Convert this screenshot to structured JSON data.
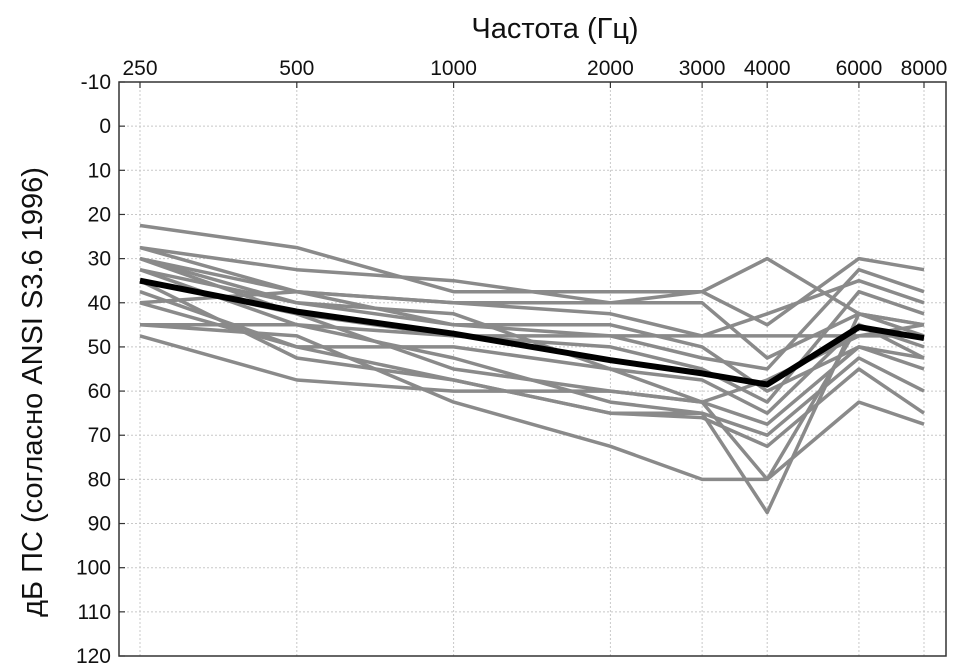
{
  "chart_data": {
    "type": "line",
    "title": "",
    "xlabel": "Частота (Гц)",
    "ylabel": "дБ ПС (согласно ANSI S3.6 1996)",
    "x_scale": "log",
    "x_ticks": [
      250,
      500,
      1000,
      2000,
      3000,
      4000,
      6000,
      8000
    ],
    "x_tick_labels": [
      "250",
      "500",
      "1000",
      "2000",
      "3000",
      "4000",
      "6000",
      "8000"
    ],
    "y_ticks": [
      -10,
      0,
      10,
      20,
      30,
      40,
      50,
      60,
      70,
      80,
      90,
      100,
      110,
      120
    ],
    "y_tick_labels": [
      "-10",
      "0",
      "10",
      "20",
      "30",
      "40",
      "50",
      "60",
      "70",
      "80",
      "90",
      "100",
      "110",
      "120"
    ],
    "xlim": [
      250,
      8000
    ],
    "ylim": [
      -10,
      120
    ],
    "y_inverted": true,
    "grid": true,
    "legend": "none",
    "colors": {
      "individual": "#8a8a8a",
      "mean": "#000000",
      "grid": "#c8c8c8",
      "frame": "#333333"
    },
    "x": [
      250,
      500,
      1000,
      2000,
      3000,
      4000,
      6000,
      8000
    ],
    "series": [
      {
        "values": [
          22.5,
          27.5,
          37.5,
          37.5,
          37.5,
          30,
          42.5,
          45
        ]
      },
      {
        "values": [
          27.5,
          32.5,
          35,
          40,
          37.5,
          45,
          30,
          32.5
        ]
      },
      {
        "values": [
          30,
          37.5,
          40,
          42.5,
          47.5,
          42.5,
          35,
          40
        ]
      },
      {
        "values": [
          32.5,
          40,
          45,
          47.5,
          52.5,
          55,
          32.5,
          37.5
        ]
      },
      {
        "values": [
          35,
          42.5,
          47.5,
          50,
          55,
          62.5,
          37.5,
          42.5
        ]
      },
      {
        "values": [
          40,
          37.5,
          40,
          40,
          40,
          52.5,
          42.5,
          47.5
        ]
      },
      {
        "values": [
          45,
          45,
          47.5,
          47.5,
          47.5,
          47.5,
          47.5,
          47.5
        ]
      },
      {
        "values": [
          37.5,
          50,
          50,
          55,
          57.5,
          65,
          45,
          52.5
        ]
      },
      {
        "values": [
          30,
          42.5,
          55,
          60,
          62.5,
          67.5,
          50,
          55
        ]
      },
      {
        "values": [
          32.5,
          45,
          52.5,
          62.5,
          65,
          70,
          52.5,
          60
        ]
      },
      {
        "values": [
          35,
          52.5,
          57.5,
          65,
          66,
          72.5,
          55,
          65
        ]
      },
      {
        "values": [
          47.5,
          57.5,
          60,
          60,
          62.5,
          80,
          62.5,
          67.5
        ]
      },
      {
        "values": [
          45,
          47.5,
          62.5,
          72.5,
          80,
          80,
          45,
          50
        ]
      },
      {
        "values": [
          40,
          50,
          57.5,
          65,
          65,
          87.5,
          42.5,
          45
        ]
      },
      {
        "values": [
          27.5,
          37.5,
          45,
          45,
          50,
          60,
          50,
          52.5
        ]
      },
      {
        "values": [
          30,
          40,
          42.5,
          55,
          62.5,
          57.5,
          47.5,
          45
        ]
      }
    ],
    "mean_series": {
      "values": [
        35,
        42,
        47,
        53,
        56,
        58.5,
        45.5,
        48
      ]
    }
  }
}
